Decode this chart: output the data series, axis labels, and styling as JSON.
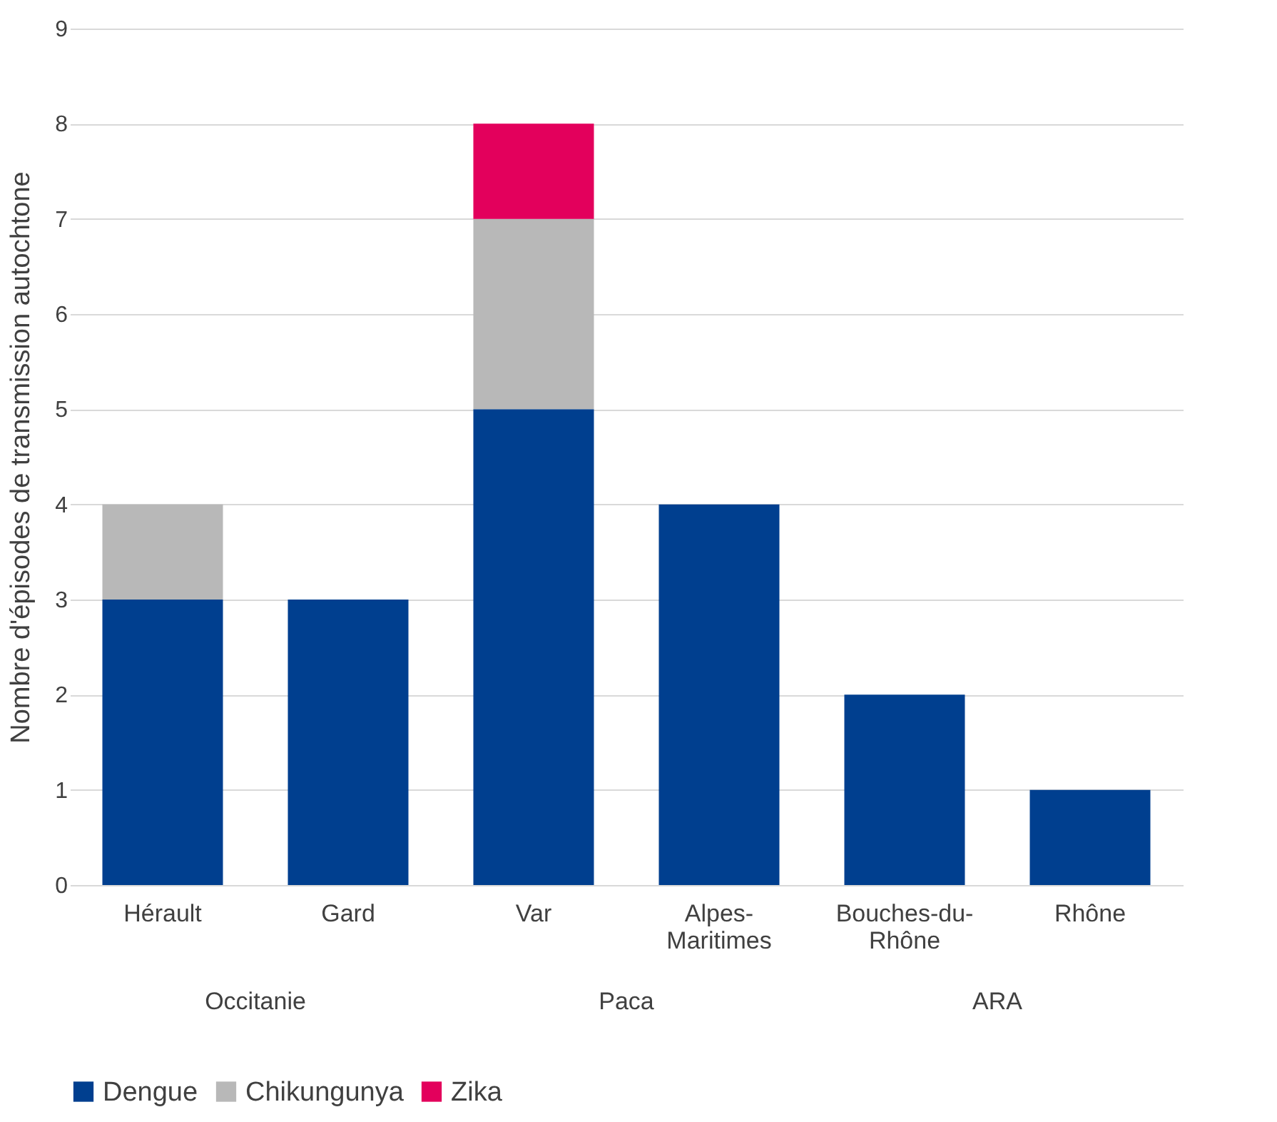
{
  "chart_data": {
    "type": "bar",
    "ylabel": "Nombre d'épisodes de transmission autochtone",
    "categories": [
      "Hérault",
      "Gard",
      "Var",
      "Alpes-Maritimes",
      "Bouches-du-Rhône",
      "Rhône"
    ],
    "series": [
      {
        "name": "Dengue",
        "color": "#003f8f",
        "values": [
          3,
          3,
          5,
          4,
          2,
          1
        ]
      },
      {
        "name": "Chikungunya",
        "color": "#b8b8b8",
        "values": [
          1,
          0,
          2,
          0,
          0,
          0
        ]
      },
      {
        "name": "Zika",
        "color": "#e3005c",
        "values": [
          0,
          0,
          1,
          0,
          0,
          0
        ]
      }
    ],
    "stacked": true,
    "ylim": [
      0,
      9
    ],
    "yticks": [
      0,
      1,
      2,
      3,
      4,
      5,
      6,
      7,
      8,
      9
    ],
    "grid": "y",
    "legend": "bottom",
    "annotations": [
      "Occitanie",
      "Paca",
      "ARA"
    ]
  }
}
